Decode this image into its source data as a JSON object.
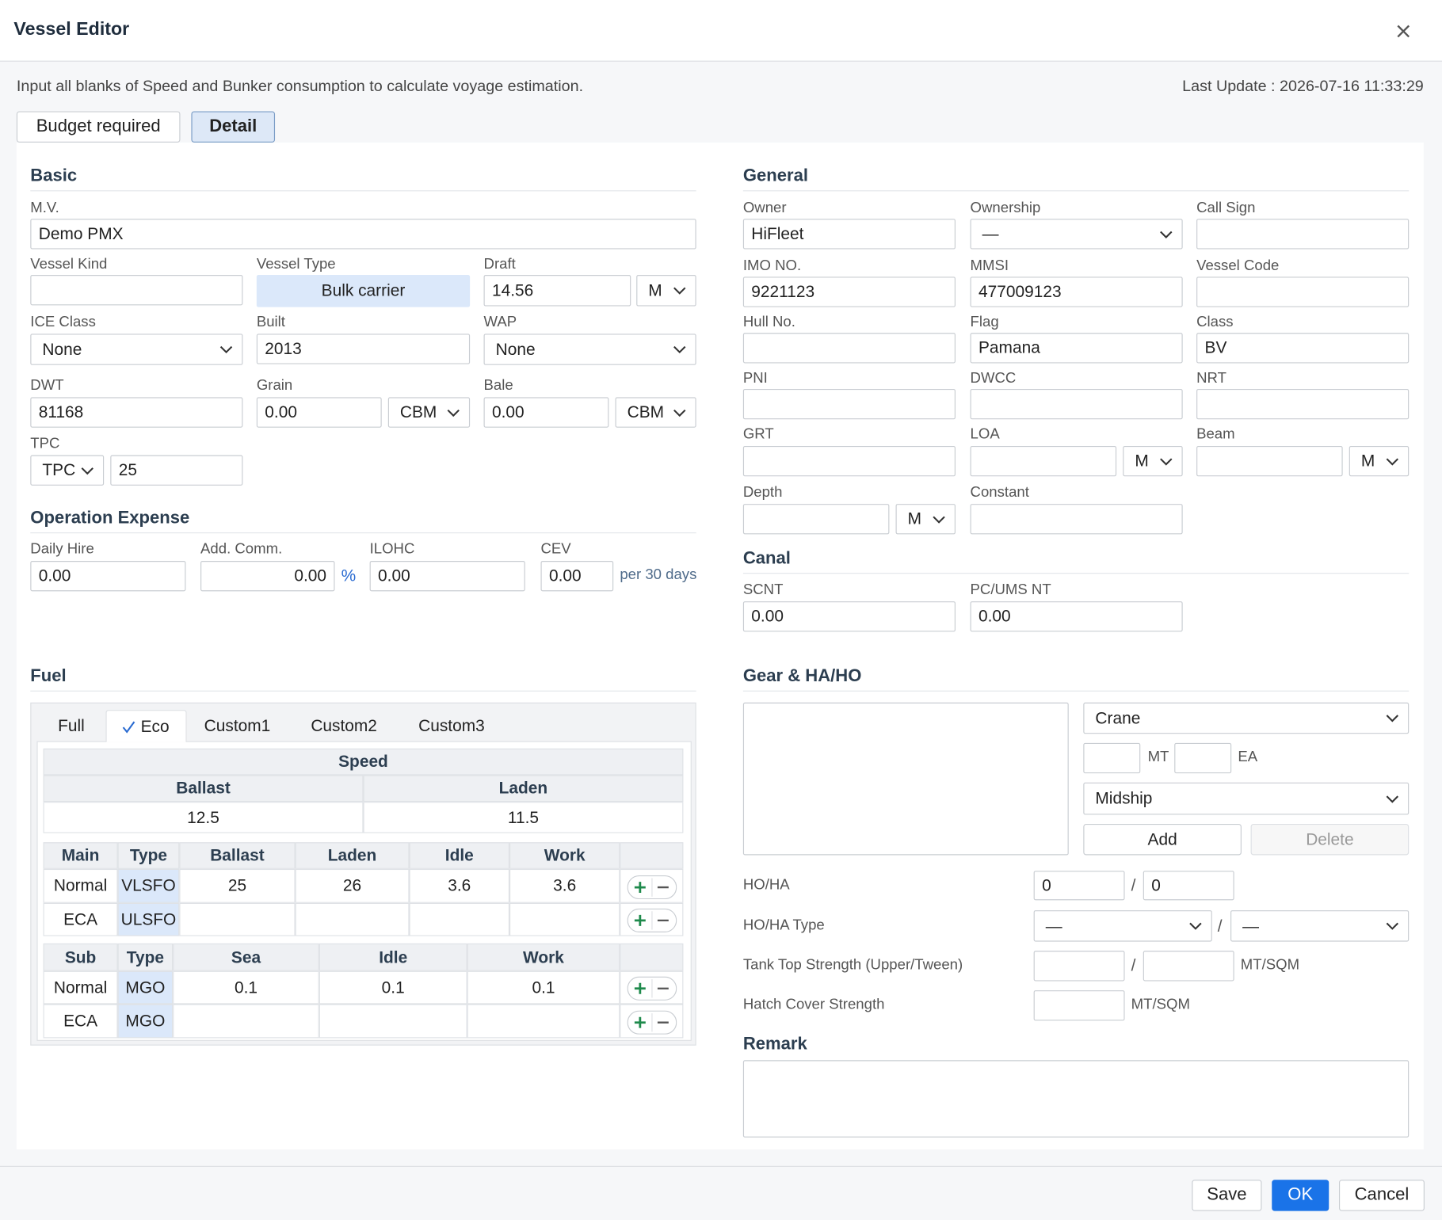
{
  "header": {
    "title": "Vessel Editor"
  },
  "notice": "Input all blanks of Speed and Bunker consumption to calculate voyage estimation.",
  "last_update": "Last Update : 2026-07-16 11:33:29",
  "view_tabs": [
    "Budget required",
    "Detail"
  ],
  "basic": {
    "title": "Basic",
    "fields": [
      {
        "label": "M.V.",
        "value": "Demo PMX"
      },
      {
        "label": "Vessel Kind"
      },
      {
        "label": "Vessel Type",
        "value": "Bulk carrier"
      },
      {
        "label": "Draft",
        "value": "14.56",
        "unit": "M"
      },
      {
        "label": "ICE Class",
        "value": "None"
      },
      {
        "label": "Built",
        "value": "2013"
      },
      {
        "label": "WAP",
        "value": "None"
      },
      {
        "label": "DWT",
        "value": "81168"
      },
      {
        "label": "Grain",
        "value": "0.00",
        "unit": "CBM"
      },
      {
        "label": "Bale",
        "value": "0.00",
        "unit": "CBM"
      },
      {
        "label": "TPC",
        "mode": "TPC",
        "value": "25"
      }
    ]
  },
  "operation_expense": {
    "title": "Operation Expense",
    "fields": [
      {
        "label": "Daily Hire",
        "value": "0.00"
      },
      {
        "label": "Add. Comm.",
        "value": "0.00",
        "unit": "%"
      },
      {
        "label": "ILOHC",
        "value": "0.00"
      },
      {
        "label": "CEV",
        "value": "0.00",
        "unit": "per 30 days"
      }
    ]
  },
  "general": {
    "title": "General",
    "fields": [
      {
        "label": "Owner",
        "value": "HiFleet"
      },
      {
        "label": "Ownership",
        "value": "—"
      },
      {
        "label": "Call Sign"
      },
      {
        "label": "IMO NO.",
        "value": "9221123"
      },
      {
        "label": "MMSI",
        "value": "477009123"
      },
      {
        "label": "Vessel Code"
      },
      {
        "label": "Hull No."
      },
      {
        "label": "Flag",
        "value": "Pamana"
      },
      {
        "label": "Class",
        "value": "BV"
      },
      {
        "label": "PNI"
      },
      {
        "label": "DWCC"
      },
      {
        "label": "NRT"
      },
      {
        "label": "GRT"
      },
      {
        "label": "LOA",
        "unit": "M"
      },
      {
        "label": "Beam",
        "unit": "M"
      },
      {
        "label": "Depth",
        "unit": "M"
      },
      {
        "label": "Constant"
      }
    ]
  },
  "canal": {
    "title": "Canal",
    "fields": [
      {
        "label": "SCNT",
        "value": "0.00"
      },
      {
        "label": "PC/UMS NT",
        "value": "0.00"
      }
    ]
  },
  "fuel": {
    "title": "Fuel",
    "tabs": [
      "Full",
      "Eco",
      "Custom1",
      "Custom2",
      "Custom3"
    ],
    "active_tab": 1,
    "speed": {
      "title": "Speed",
      "columns": [
        "Ballast",
        "Laden"
      ],
      "values": [
        "12.5",
        "11.5"
      ]
    },
    "main": {
      "columns": [
        "Main",
        "Type",
        "Ballast",
        "Laden",
        "Idle",
        "Work"
      ],
      "rows": [
        [
          "Normal",
          "VLSFO",
          "25",
          "26",
          "3.6",
          "3.6"
        ],
        [
          "ECA",
          "ULSFO"
        ]
      ]
    },
    "sub": {
      "columns": [
        "Sub",
        "Type",
        "Sea",
        "Idle",
        "Work"
      ],
      "rows": [
        [
          "Normal",
          "MGO",
          "0.1",
          "0.1",
          "0.1"
        ],
        [
          "ECA",
          "MGO"
        ]
      ]
    }
  },
  "gear": {
    "title": "Gear & HA/HO",
    "gear_type": "Crane",
    "capacity_unit": "MT",
    "count_unit": "EA",
    "position": "Midship",
    "buttons": [
      "Add",
      "Delete"
    ],
    "separator": "/",
    "rows": [
      {
        "label": "HO/HA",
        "values": [
          "0",
          "0"
        ]
      },
      {
        "label": "HO/HA Type",
        "values": [
          "—",
          "—"
        ]
      },
      {
        "label": "Tank Top Strength (Upper/Tween)",
        "unit": "MT/SQM"
      },
      {
        "label": "Hatch Cover Strength",
        "unit": "MT/SQM"
      }
    ]
  },
  "remark": {
    "title": "Remark"
  },
  "footer": {
    "buttons": [
      "Save",
      "OK",
      "Cancel"
    ]
  }
}
